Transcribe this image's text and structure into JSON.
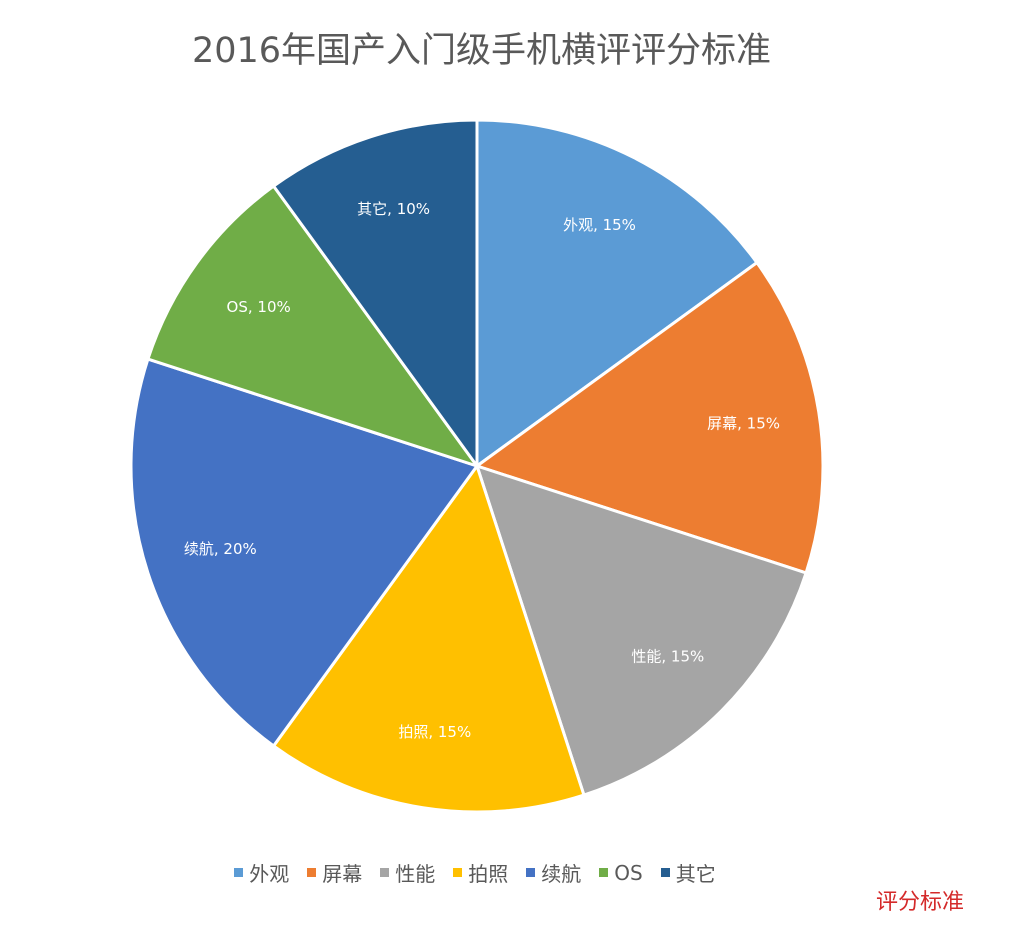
{
  "chart_data": {
    "type": "pie",
    "title": "2016年国产入门级手机横评评分标准",
    "categories": [
      "外观",
      "屏幕",
      "性能",
      "拍照",
      "续航",
      "OS",
      "其它"
    ],
    "values": [
      15,
      15,
      15,
      15,
      20,
      10,
      10
    ],
    "data_labels": [
      "外观, 15%",
      "屏幕, 15%",
      "性能, 15%",
      "拍照, 15%",
      "续航, 20%",
      "OS, 10%",
      "其它, 10%"
    ],
    "colors": [
      "#5B9BD5",
      "#ED7D31",
      "#A5A5A5",
      "#FFC000",
      "#4472C4",
      "#70AD47",
      "#255E91"
    ],
    "legend_position": "bottom"
  },
  "watermark_text": "评分标准"
}
